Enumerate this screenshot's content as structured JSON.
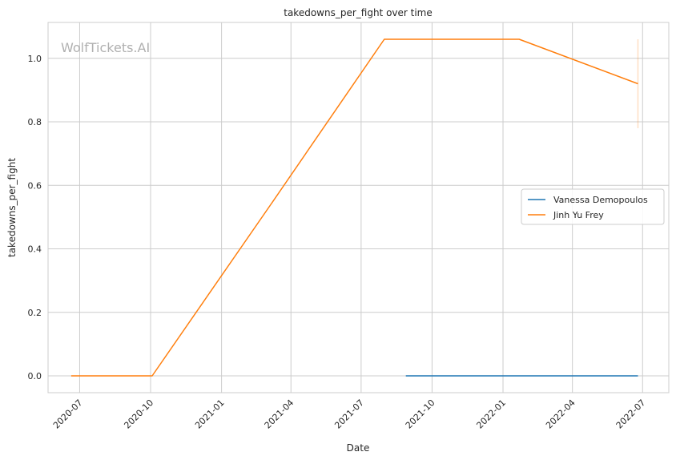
{
  "watermark": "WolfTickets.AI",
  "chart_data": {
    "type": "line",
    "title": "takedowns_per_fight over time",
    "xlabel": "Date",
    "ylabel": "takedowns_per_fight",
    "x_range": [
      "2020-05-21",
      "2022-08-04"
    ],
    "ylim": [
      -0.053,
      1.113
    ],
    "x_ticks": [
      {
        "date": "2020-07-01",
        "label": "2020-07"
      },
      {
        "date": "2020-10-01",
        "label": "2020-10"
      },
      {
        "date": "2021-01-01",
        "label": "2021-01"
      },
      {
        "date": "2021-04-01",
        "label": "2021-04"
      },
      {
        "date": "2021-07-01",
        "label": "2021-07"
      },
      {
        "date": "2021-10-01",
        "label": "2021-10"
      },
      {
        "date": "2022-01-01",
        "label": "2022-01"
      },
      {
        "date": "2022-04-01",
        "label": "2022-04"
      },
      {
        "date": "2022-07-01",
        "label": "2022-07"
      }
    ],
    "y_ticks": [
      {
        "value": 0.0,
        "label": "0.0"
      },
      {
        "value": 0.2,
        "label": "0.2"
      },
      {
        "value": 0.4,
        "label": "0.4"
      },
      {
        "value": 0.6,
        "label": "0.6"
      },
      {
        "value": 0.8,
        "label": "0.8"
      },
      {
        "value": 1.0,
        "label": "1.0"
      }
    ],
    "grid": true,
    "legend_position": "center-right",
    "series": [
      {
        "name": "Vanessa Demopoulos",
        "color": "#1f77b4",
        "points": [
          {
            "x": "2021-08-28",
            "y": 0.0
          },
          {
            "x": "2022-06-25",
            "y": 0.0
          }
        ]
      },
      {
        "name": "Jinh Yu Frey",
        "color": "#ff7f0e",
        "points": [
          {
            "x": "2020-06-20",
            "y": 0.0
          },
          {
            "x": "2020-10-03",
            "y": 0.0
          },
          {
            "x": "2021-03-06",
            "y": 0.54
          },
          {
            "x": "2021-07-31",
            "y": 1.06
          },
          {
            "x": "2022-01-22",
            "y": 1.06
          },
          {
            "x": "2022-06-25",
            "y": 0.92
          }
        ]
      }
    ],
    "annotations": [
      {
        "type": "vertical-band",
        "x": "2022-06-25",
        "y_from": 0.78,
        "y_to": 1.06,
        "color": "#ff7f0e"
      }
    ]
  }
}
